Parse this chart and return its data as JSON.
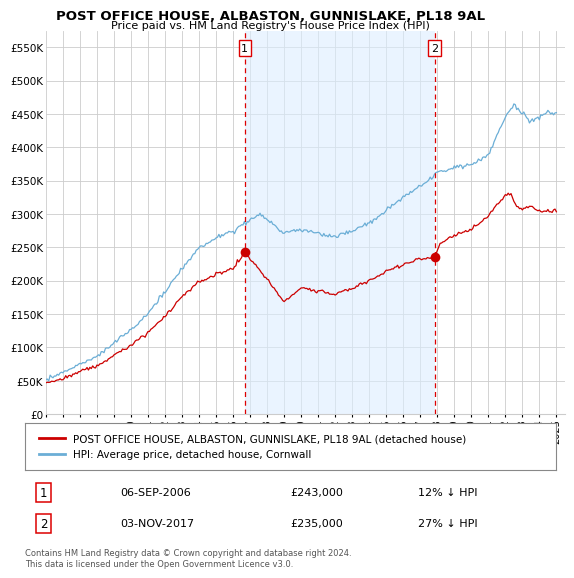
{
  "title": "POST OFFICE HOUSE, ALBASTON, GUNNISLAKE, PL18 9AL",
  "subtitle": "Price paid vs. HM Land Registry's House Price Index (HPI)",
  "ylabel_ticks": [
    "£0",
    "£50K",
    "£100K",
    "£150K",
    "£200K",
    "£250K",
    "£300K",
    "£350K",
    "£400K",
    "£450K",
    "£500K",
    "£550K"
  ],
  "ytick_values": [
    0,
    50000,
    100000,
    150000,
    200000,
    250000,
    300000,
    350000,
    400000,
    450000,
    500000,
    550000
  ],
  "ylim": [
    0,
    575000
  ],
  "xlim_start": 1995.0,
  "xlim_end": 2025.5,
  "sale1_x": 2006.69,
  "sale1_y": 243000,
  "sale1_label": "1",
  "sale2_x": 2017.84,
  "sale2_y": 235000,
  "sale2_label": "2",
  "hpi_color": "#6baed6",
  "hpi_fill_color": "#dceeff",
  "price_color": "#cc0000",
  "dashed_color": "#dd0000",
  "bg_color": "#ffffff",
  "grid_color": "#cccccc",
  "legend_house_label": "POST OFFICE HOUSE, ALBASTON, GUNNISLAKE, PL18 9AL (detached house)",
  "legend_hpi_label": "HPI: Average price, detached house, Cornwall",
  "table_rows": [
    [
      "1",
      "06-SEP-2006",
      "£243,000",
      "12% ↓ HPI"
    ],
    [
      "2",
      "03-NOV-2017",
      "£235,000",
      "27% ↓ HPI"
    ]
  ],
  "footer": "Contains HM Land Registry data © Crown copyright and database right 2024.\nThis data is licensed under the Open Government Licence v3.0.",
  "xtick_years": [
    1995,
    1996,
    1997,
    1998,
    1999,
    2000,
    2001,
    2002,
    2003,
    2004,
    2005,
    2006,
    2007,
    2008,
    2009,
    2010,
    2011,
    2012,
    2013,
    2014,
    2015,
    2016,
    2017,
    2018,
    2019,
    2020,
    2021,
    2022,
    2023,
    2024,
    2025
  ]
}
